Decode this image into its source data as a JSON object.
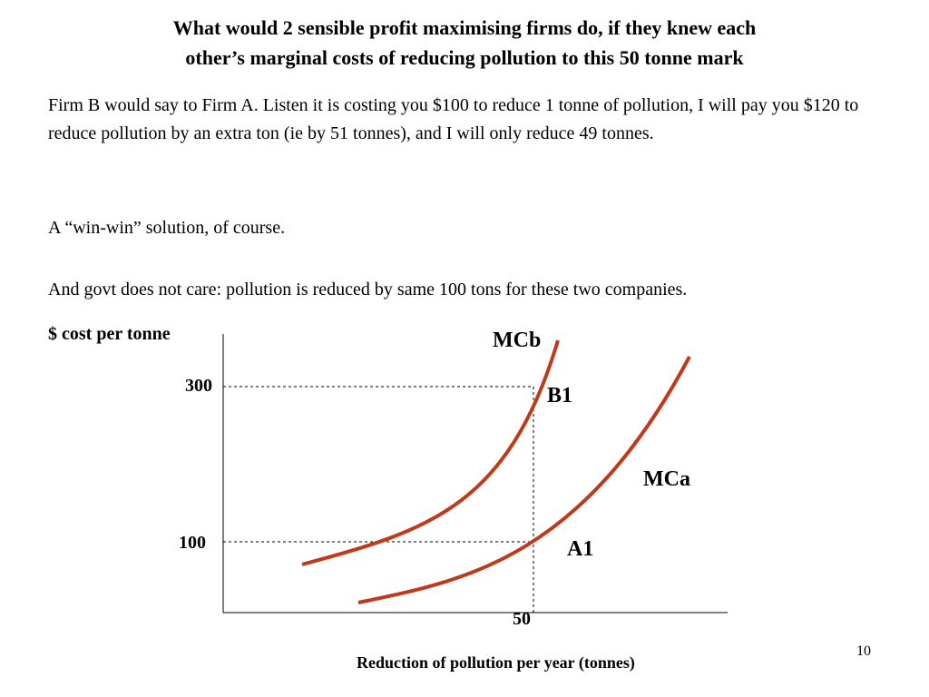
{
  "slide": {
    "title_line1": "What would 2 sensible profit maximising firms do, if they knew each",
    "title_line2": "other’s marginal costs of reducing pollution to this 50 tonne mark",
    "paragraph1": "Firm B would say to Firm A.  Listen it is costing you $100 to reduce 1 tonne of pollution, I will pay you $120 to reduce pollution by an extra ton (ie by 51 tonnes), and I will only reduce 49 tonnes.",
    "paragraph2": "A “win-win” solution, of course.",
    "paragraph3": "And govt does not care: pollution is reduced by same 100 tons for these two companies.",
    "page_number": "10"
  },
  "diagram": {
    "y_axis_label": "$ cost per tonne",
    "x_axis_label": "Reduction of pollution per year (tonnes)",
    "y_tick_300": "300",
    "y_tick_100": "100",
    "x_tick_50": "50",
    "curve_b_label": "MCb",
    "curve_a_label": "MCa",
    "point_b_label": "B1",
    "point_a_label": "A1",
    "curve_color": "#c0391b",
    "axis_color": "#000000",
    "guide_color": "#000000"
  }
}
